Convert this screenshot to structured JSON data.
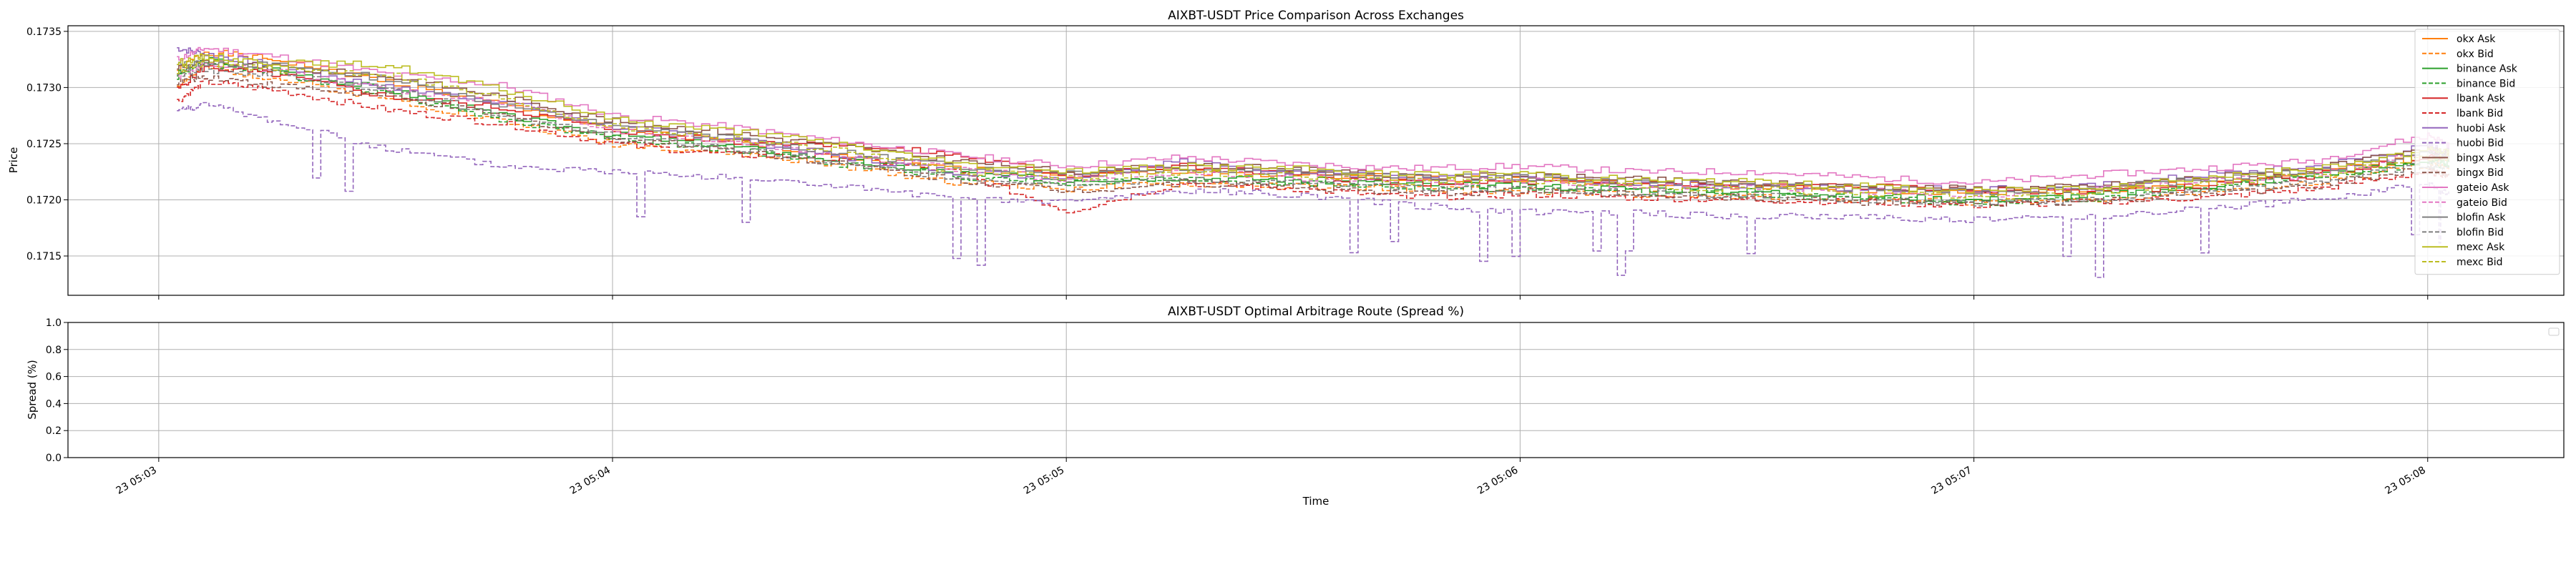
{
  "chart_data": [
    {
      "type": "line",
      "title": "AIXBT-USDT Price Comparison Across Exchanges",
      "xlabel": "",
      "ylabel": "Price",
      "ylim": [
        0.17115,
        0.17355
      ],
      "yticks": [
        "0.1715",
        "0.1720",
        "0.1725",
        "0.1730",
        "0.1735"
      ],
      "ytick_values": [
        0.1715,
        0.172,
        0.1725,
        0.173,
        0.1735
      ],
      "xlim_minutes": [
        -0.2,
        5.3
      ],
      "xtick_values": [
        0,
        1,
        2,
        3,
        4,
        5
      ],
      "grid": true,
      "legend_position": "top-right",
      "x_unit": "minutes after 05:03",
      "anchors_x": [
        0.04,
        0.1,
        0.25,
        0.5,
        0.75,
        1.0,
        1.25,
        1.5,
        1.75,
        2.0,
        2.25,
        2.5,
        2.75,
        3.0,
        3.25,
        3.5,
        3.75,
        4.0,
        4.25,
        4.5,
        4.75,
        5.0,
        5.05
      ],
      "series": [
        {
          "name": "okx Ask",
          "color": "#ff7f0e",
          "dash": false,
          "values": [
            0.17315,
            0.17332,
            0.17325,
            0.17305,
            0.17285,
            0.17262,
            0.17252,
            0.1724,
            0.17228,
            0.17222,
            0.17225,
            0.17222,
            0.1722,
            0.17218,
            0.17214,
            0.17212,
            0.17208,
            0.17206,
            0.17208,
            0.17215,
            0.17225,
            0.17238,
            0.17235
          ]
        },
        {
          "name": "okx Bid",
          "color": "#ff7f0e",
          "dash": true,
          "values": [
            0.17302,
            0.17318,
            0.17308,
            0.1729,
            0.1727,
            0.1725,
            0.17242,
            0.1723,
            0.17216,
            0.1721,
            0.17214,
            0.17212,
            0.1721,
            0.17208,
            0.17205,
            0.17203,
            0.172,
            0.17198,
            0.172,
            0.17207,
            0.17215,
            0.17232,
            0.17228
          ]
        },
        {
          "name": "binance Ask",
          "color": "#2ca02c",
          "dash": false,
          "values": [
            0.17312,
            0.17325,
            0.17316,
            0.17298,
            0.17275,
            0.17258,
            0.17248,
            0.17235,
            0.17224,
            0.17218,
            0.1722,
            0.17218,
            0.17214,
            0.17212,
            0.1721,
            0.17208,
            0.17204,
            0.172,
            0.17204,
            0.17212,
            0.17222,
            0.17235,
            0.17232
          ]
        },
        {
          "name": "binance Bid",
          "color": "#2ca02c",
          "dash": true,
          "values": [
            0.1731,
            0.17322,
            0.17313,
            0.17295,
            0.17272,
            0.17255,
            0.17245,
            0.17232,
            0.17221,
            0.17215,
            0.17218,
            0.17215,
            0.17211,
            0.17209,
            0.17207,
            0.17205,
            0.17201,
            0.17197,
            0.17201,
            0.1721,
            0.1722,
            0.17233,
            0.1723
          ]
        },
        {
          "name": "lbank Ask",
          "color": "#d62728",
          "dash": false,
          "values": [
            0.17298,
            0.17318,
            0.17312,
            0.17292,
            0.17282,
            0.17262,
            0.17252,
            0.1725,
            0.1724,
            0.17222,
            0.1723,
            0.17222,
            0.17215,
            0.17216,
            0.17214,
            0.17212,
            0.17212,
            0.17208,
            0.17208,
            0.17212,
            0.17222,
            0.1724,
            0.17238
          ]
        },
        {
          "name": "lbank Bid",
          "color": "#d62728",
          "dash": true,
          "values": [
            0.17288,
            0.17305,
            0.17298,
            0.1728,
            0.17268,
            0.1725,
            0.1724,
            0.17238,
            0.17225,
            0.1719,
            0.17215,
            0.1721,
            0.17202,
            0.17205,
            0.17202,
            0.172,
            0.17198,
            0.17195,
            0.17198,
            0.17202,
            0.1721,
            0.17225,
            0.17222
          ]
        },
        {
          "name": "huobi Ask",
          "color": "#9467bd",
          "dash": false,
          "values": [
            0.17335,
            0.1733,
            0.1732,
            0.173,
            0.17288,
            0.17265,
            0.17255,
            0.17238,
            0.17225,
            0.1722,
            0.17235,
            0.17225,
            0.1722,
            0.1722,
            0.17215,
            0.17212,
            0.1721,
            0.1721,
            0.17212,
            0.17222,
            0.1723,
            0.17248,
            0.17242
          ]
        },
        {
          "name": "huobi Bid",
          "color": "#9467bd",
          "dash": true,
          "values": [
            0.1728,
            0.17285,
            0.1727,
            0.17245,
            0.1723,
            0.17225,
            0.1722,
            0.17212,
            0.172,
            0.17198,
            0.17208,
            0.17205,
            0.17195,
            0.1719,
            0.17188,
            0.17185,
            0.17185,
            0.17182,
            0.17185,
            0.17192,
            0.172,
            0.17215,
            0.17205
          ]
        },
        {
          "name": "bingx Ask",
          "color": "#8c564b",
          "dash": false,
          "values": [
            0.17318,
            0.17322,
            0.17318,
            0.1731,
            0.17292,
            0.1727,
            0.1726,
            0.17248,
            0.17235,
            0.17225,
            0.1723,
            0.17228,
            0.1722,
            0.17222,
            0.17218,
            0.17215,
            0.17212,
            0.1721,
            0.17212,
            0.1722,
            0.17228,
            0.17245,
            0.1724
          ]
        },
        {
          "name": "bingx Bid",
          "color": "#8c564b",
          "dash": true,
          "values": [
            0.17305,
            0.1731,
            0.17302,
            0.17292,
            0.17275,
            0.17255,
            0.17245,
            0.17232,
            0.17218,
            0.17208,
            0.17215,
            0.17212,
            0.17205,
            0.17208,
            0.17205,
            0.17202,
            0.17198,
            0.17196,
            0.17198,
            0.17205,
            0.17212,
            0.17228,
            0.17222
          ]
        },
        {
          "name": "gateio Ask",
          "color": "#e377c2",
          "dash": false,
          "values": [
            0.17325,
            0.17335,
            0.17328,
            0.17312,
            0.17302,
            0.17275,
            0.17265,
            0.17252,
            0.1724,
            0.1723,
            0.17238,
            0.17232,
            0.17228,
            0.1723,
            0.17225,
            0.17225,
            0.1722,
            0.17215,
            0.17222,
            0.17228,
            0.17235,
            0.17258,
            0.17248
          ]
        },
        {
          "name": "gateio Bid",
          "color": "#e377c2",
          "dash": true,
          "values": [
            0.1731,
            0.1732,
            0.17315,
            0.17298,
            0.17288,
            0.17262,
            0.17252,
            0.1724,
            0.17228,
            0.17218,
            0.17225,
            0.1722,
            0.17215,
            0.17218,
            0.17212,
            0.17212,
            0.17208,
            0.17204,
            0.1721,
            0.17216,
            0.17222,
            0.17245,
            0.17236
          ]
        },
        {
          "name": "blofin Ask",
          "color": "#7f7f7f",
          "dash": false,
          "values": [
            0.1732,
            0.17322,
            0.1732,
            0.17308,
            0.17285,
            0.17265,
            0.17255,
            0.17242,
            0.1723,
            0.17225,
            0.17228,
            0.17225,
            0.1722,
            0.1722,
            0.17216,
            0.17214,
            0.1721,
            0.17207,
            0.1721,
            0.17218,
            0.17226,
            0.17242,
            0.17238
          ]
        },
        {
          "name": "blofin Bid",
          "color": "#7f7f7f",
          "dash": true,
          "values": [
            0.17312,
            0.17315,
            0.17312,
            0.17298,
            0.17276,
            0.17256,
            0.17246,
            0.17232,
            0.1722,
            0.17215,
            0.17218,
            0.17215,
            0.1721,
            0.1721,
            0.17206,
            0.17204,
            0.172,
            0.17197,
            0.172,
            0.17208,
            0.17216,
            0.17232,
            0.17228
          ]
        },
        {
          "name": "mexc Ask",
          "color": "#bcbd22",
          "dash": false,
          "values": [
            0.17322,
            0.17328,
            0.17322,
            0.1732,
            0.17298,
            0.17272,
            0.17262,
            0.1725,
            0.17232,
            0.17226,
            0.1723,
            0.17228,
            0.17222,
            0.17224,
            0.17218,
            0.17216,
            0.17212,
            0.17208,
            0.17212,
            0.1722,
            0.17228,
            0.17245,
            0.17242
          ]
        },
        {
          "name": "mexc Bid",
          "color": "#bcbd22",
          "dash": true,
          "values": [
            0.17315,
            0.17322,
            0.17316,
            0.17312,
            0.1729,
            0.17265,
            0.17255,
            0.17244,
            0.17226,
            0.1722,
            0.17224,
            0.17222,
            0.17216,
            0.17218,
            0.17212,
            0.1721,
            0.17206,
            0.17202,
            0.17206,
            0.17214,
            0.17222,
            0.17238,
            0.17236
          ]
        }
      ]
    },
    {
      "type": "line",
      "title": "AIXBT-USDT Optimal Arbitrage Route (Spread %)",
      "xlabel": "Time",
      "ylabel": "Spread (%)",
      "ylim": [
        0.0,
        1.0
      ],
      "yticks": [
        "0.0",
        "0.2",
        "0.4",
        "0.6",
        "0.8",
        "1.0"
      ],
      "ytick_values": [
        0.0,
        0.2,
        0.4,
        0.6,
        0.8,
        1.0
      ],
      "xticks": [
        "23 05:03",
        "23 05:04",
        "23 05:05",
        "23 05:06",
        "23 05:07",
        "23 05:08"
      ],
      "xtick_values": [
        0,
        1,
        2,
        3,
        4,
        5
      ],
      "grid": true,
      "series": []
    }
  ]
}
